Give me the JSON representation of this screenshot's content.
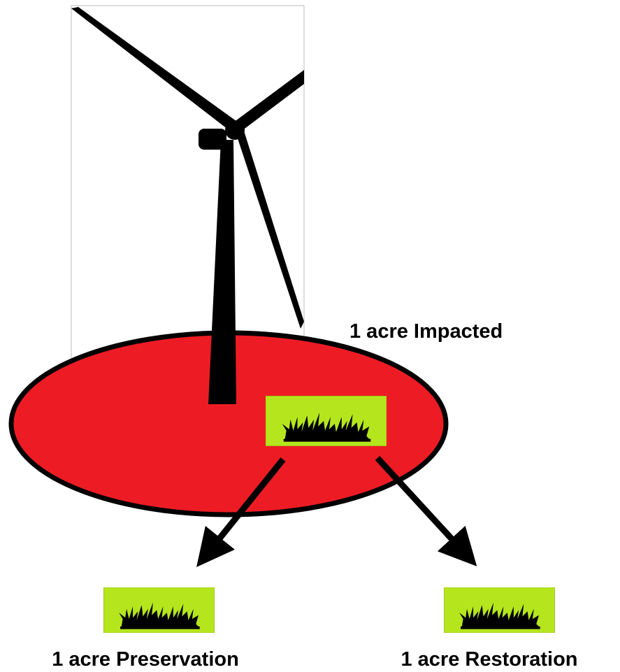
{
  "labels": {
    "impacted": "1 acre Impacted",
    "preservation": "1 acre Preservation",
    "restoration": "1 acre Restoration"
  }
}
